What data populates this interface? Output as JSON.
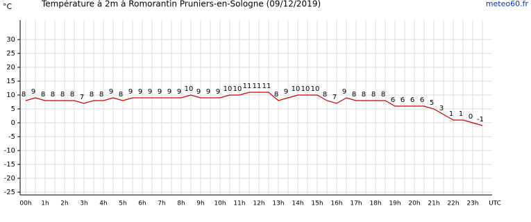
{
  "chart_data": {
    "type": "line",
    "title": "Température à 2m à Romorantin Pruniers-en-Sologne (09/12/2019)",
    "y_unit": "°C",
    "x_unit": "UTC",
    "source": "meteo60.fr",
    "categories": [
      "00h",
      null,
      "1h",
      null,
      "2h",
      null,
      "3h",
      null,
      "4h",
      null,
      "5h",
      null,
      "6h",
      null,
      "7h",
      null,
      "8h",
      null,
      "9h",
      null,
      "10h",
      null,
      "11h",
      null,
      "12h",
      null,
      "13h",
      null,
      "14h",
      null,
      "15h",
      null,
      "16h",
      null,
      "17h",
      null,
      "18h",
      null,
      "19h",
      null,
      "20h",
      null,
      "21h",
      null,
      "22h",
      null,
      "23h",
      null
    ],
    "series": [
      {
        "name": "Température",
        "color": "#cc0000",
        "values": [
          8,
          9,
          8,
          8,
          8,
          8,
          7,
          8,
          8,
          9,
          8,
          9,
          9,
          9,
          9,
          9,
          9,
          10,
          9,
          9,
          9,
          10,
          10,
          11,
          11,
          11,
          8,
          9,
          10,
          10,
          10,
          8,
          7,
          9,
          8,
          8,
          8,
          8,
          6,
          6,
          6,
          6,
          5,
          3,
          1,
          1,
          0,
          -1
        ]
      }
    ],
    "ylim": [
      -26,
      37
    ],
    "yticks": [
      -25,
      -20,
      -15,
      -10,
      -5,
      0,
      5,
      10,
      15,
      20,
      25,
      30
    ],
    "grid": true
  }
}
